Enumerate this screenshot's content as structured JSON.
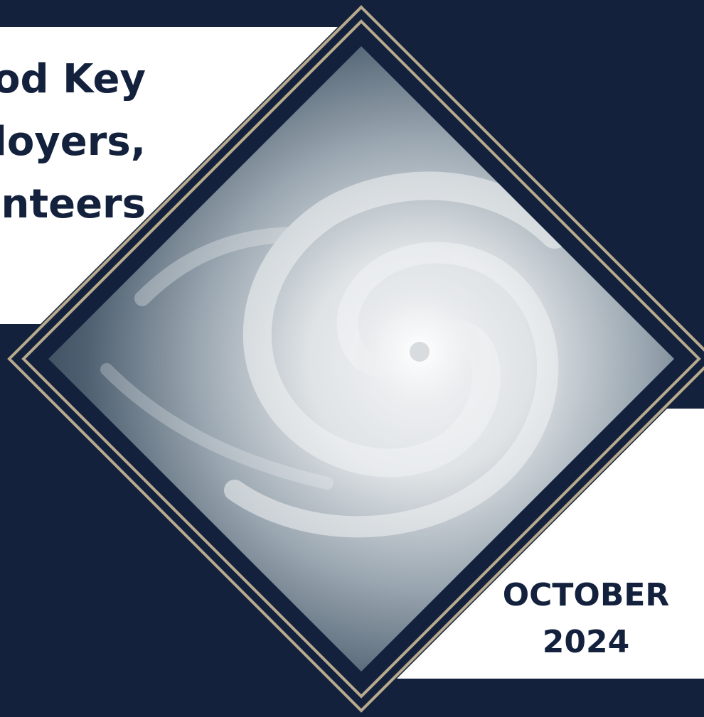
{
  "title_lines": [
    "od Key",
    "loyers,",
    "nteers"
  ],
  "date": {
    "month": "OCTOBER",
    "year": "2024"
  }
}
